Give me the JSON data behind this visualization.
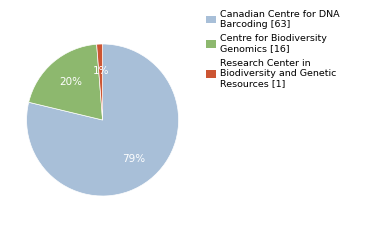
{
  "labels": [
    "Canadian Centre for DNA\nBarcoding [63]",
    "Centre for Biodiversity\nGenomics [16]",
    "Research Center in\nBiodiversity and Genetic\nResources [1]"
  ],
  "values": [
    63,
    16,
    1
  ],
  "colors": [
    "#a8bfd8",
    "#8db86e",
    "#cc5533"
  ],
  "background_color": "#ffffff",
  "pct_colors": [
    "white",
    "white",
    "white"
  ],
  "fontsize_pct": 7.5,
  "fontsize_legend": 6.8,
  "startangle": 90
}
